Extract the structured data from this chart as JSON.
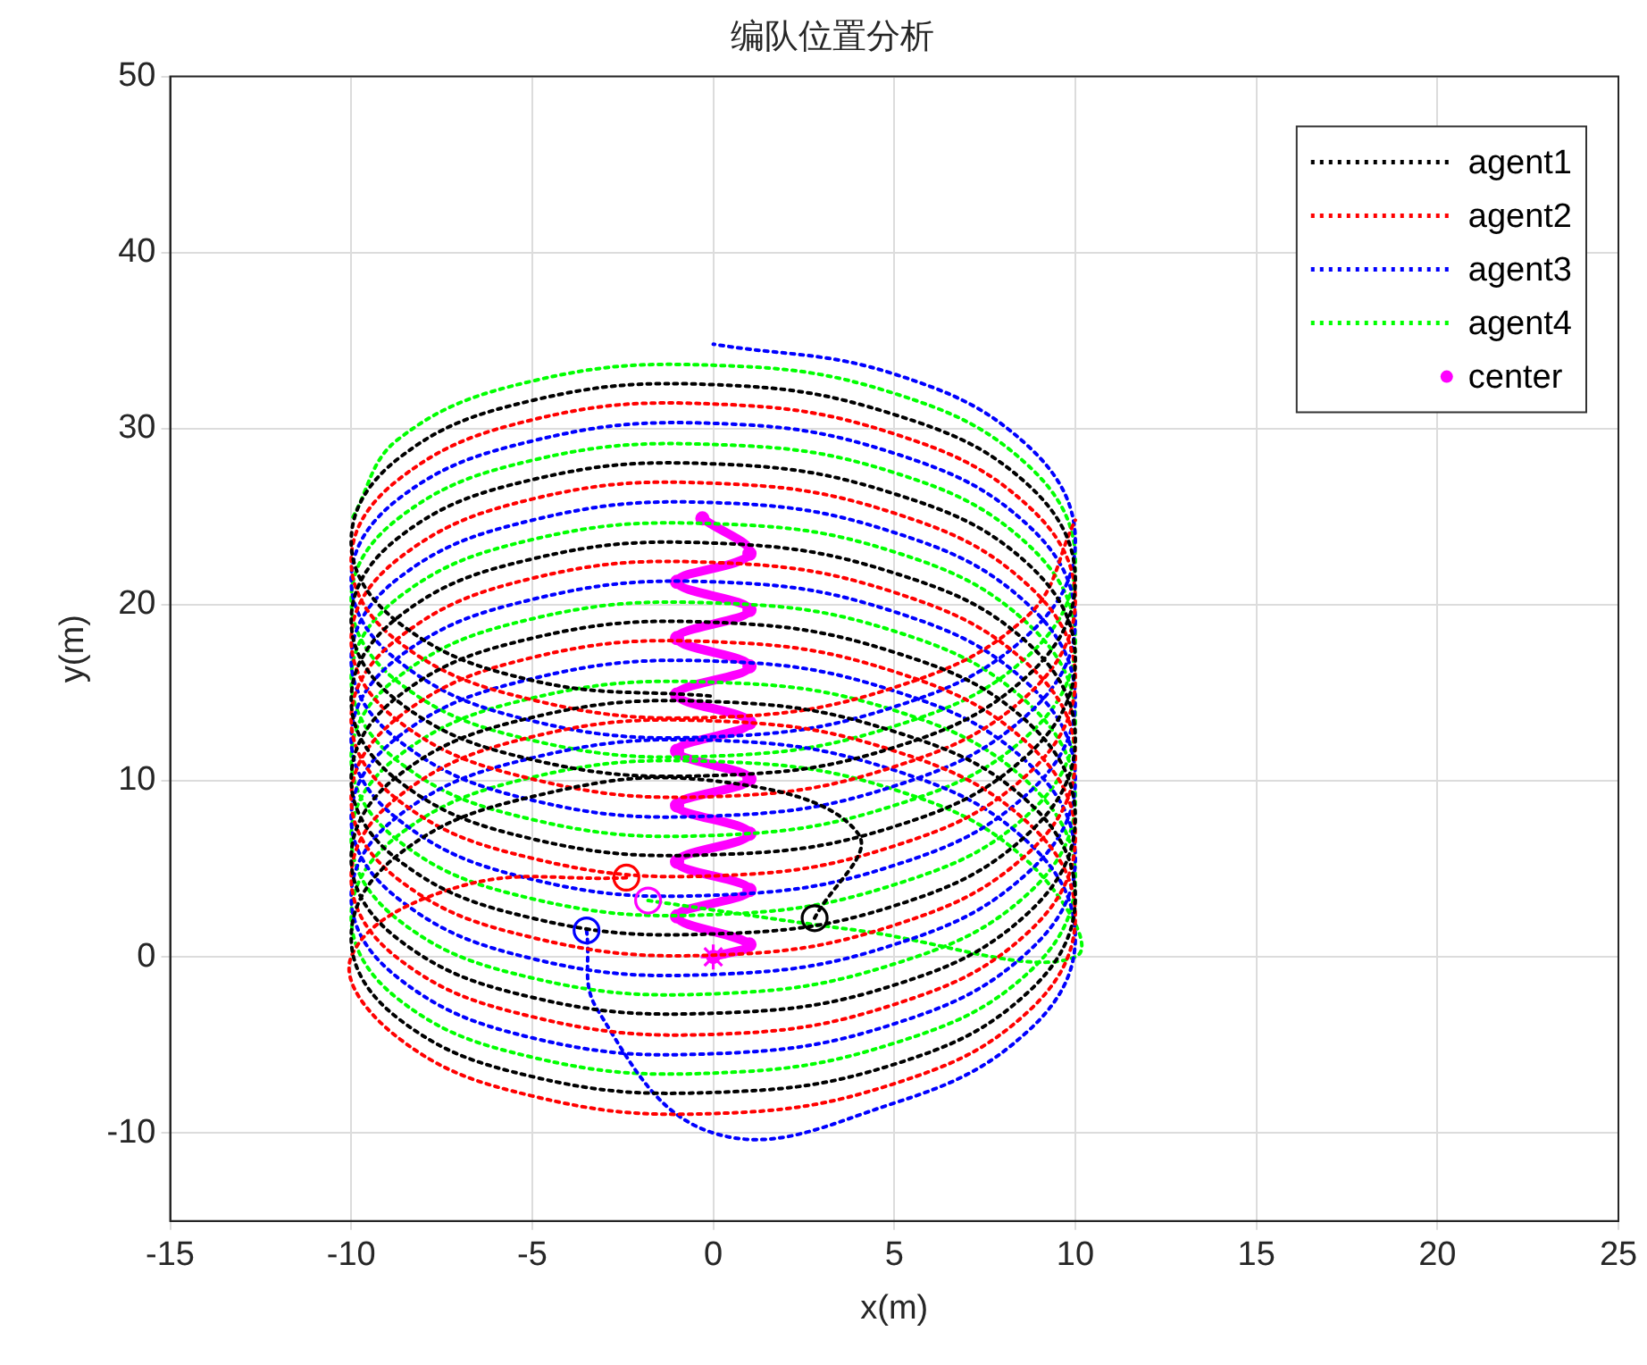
{
  "chart_data": {
    "type": "line",
    "title": "编队位置分析",
    "xlabel": "x(m)",
    "ylabel": "y(m)",
    "xlim": [
      -15,
      25
    ],
    "xticks": [
      -15,
      -10,
      -5,
      0,
      5,
      10,
      15,
      20,
      25
    ],
    "ylim": [
      -15,
      50
    ],
    "yticks": [
      -10,
      0,
      10,
      20,
      30,
      40,
      50
    ],
    "grid": true,
    "legend": "top right",
    "series": [
      {
        "name": "agent1",
        "color": "#000000",
        "line_style": "dotted",
        "marker": "none",
        "x": [
          2.8,
          4,
          0,
          -5,
          -8.7,
          -10,
          -8.7,
          -5,
          0,
          5,
          8.7,
          10,
          8.7,
          5,
          0,
          -5,
          -8.7,
          -10,
          -8.7,
          -5,
          0,
          5,
          8.7,
          10,
          8.7,
          5,
          0,
          -5,
          -8.7,
          -10,
          -8.7,
          -5,
          0,
          5,
          8.7,
          10,
          8.7,
          5,
          0,
          -5,
          -8.7,
          -10,
          -8.7,
          -5,
          0,
          5,
          8.7,
          10,
          8.7,
          5,
          0,
          -5,
          -8.7,
          -10,
          -8.7,
          -5,
          0,
          5,
          8.7,
          10,
          8.7,
          5,
          0,
          -5,
          -8.7,
          -10,
          -8.7,
          -5,
          0
        ],
        "values": [
          2.2,
          7,
          10,
          9.1,
          5.8,
          1.1,
          -3.5,
          -6.8,
          -7.7,
          -6.1,
          -2,
          3.4,
          8.8,
          12.8,
          14.5,
          13.6,
          10.3,
          5.6,
          1,
          -2.3,
          -3.2,
          -1.6,
          2.5,
          7.9,
          13.3,
          17.3,
          19,
          18.1,
          14.8,
          10.1,
          5.5,
          2.2,
          1.3,
          2.9,
          7,
          12.4,
          17.8,
          21.8,
          23.5,
          22.6,
          19.3,
          14.6,
          10,
          6.7,
          5.8,
          7.4,
          11.5,
          16.9,
          22.3,
          26.3,
          28,
          27.1,
          23.8,
          19.1,
          14.5,
          11.2,
          10.3,
          11.9,
          16,
          21.4,
          26.8,
          30.8,
          32.5,
          31.6,
          28.3,
          23.6,
          19,
          15.7,
          14.8
        ]
      },
      {
        "name": "agent2",
        "color": "#ff0000",
        "line_style": "dotted",
        "marker": "none",
        "x": [
          -2.4,
          -7,
          -10,
          -8.7,
          -5,
          0,
          5,
          8.7,
          10,
          8.7,
          5,
          0,
          -5,
          -8.7,
          -10,
          -8.7,
          -5,
          0,
          5,
          8.7,
          10,
          8.7,
          5,
          0,
          -5,
          -8.7,
          -10,
          -8.7,
          -5,
          0,
          5,
          8.7,
          10,
          8.7,
          5,
          0,
          -5,
          -8.7,
          -10,
          -8.7,
          -5,
          0,
          5,
          8.7,
          10,
          8.7,
          5,
          0,
          -5,
          -8.7,
          -10,
          -8.7,
          -5,
          0,
          5,
          8.7,
          10,
          8.7,
          5,
          0,
          -5,
          -8.7,
          -10,
          -8.7,
          -5,
          0,
          5,
          8.7,
          10
        ],
        "values": [
          4.5,
          4,
          0,
          -4.6,
          -7.9,
          -8.9,
          -7.2,
          -3.1,
          2.3,
          7.6,
          11.7,
          13.4,
          12.5,
          9.1,
          4.5,
          -0.1,
          -3.4,
          -4.4,
          -2.7,
          1.4,
          6.8,
          12.1,
          16.2,
          17.9,
          17,
          13.6,
          9,
          4.4,
          1.1,
          0.1,
          1.8,
          5.9,
          11.3,
          16.6,
          20.7,
          22.4,
          21.5,
          18.1,
          13.5,
          8.9,
          5.6,
          4.6,
          6.3,
          10.4,
          15.8,
          21.1,
          25.2,
          26.9,
          26,
          22.6,
          18,
          13.4,
          10.1,
          9.1,
          10.8,
          14.9,
          20.3,
          25.6,
          29.7,
          31.4,
          30.5,
          27.1,
          22.5,
          17.9,
          14.6,
          13.6,
          15.3,
          19.4,
          24.8
        ]
      },
      {
        "name": "agent3",
        "color": "#0000ff",
        "line_style": "dotted",
        "marker": "none",
        "x": [
          -3.5,
          -3.2,
          0,
          5,
          8.7,
          10,
          8.7,
          5,
          0,
          -5,
          -8.7,
          -10,
          -8.7,
          -5,
          0,
          5,
          8.7,
          10,
          8.7,
          5,
          0,
          -5,
          -8.7,
          -10,
          -8.7,
          -5,
          0,
          5,
          8.7,
          10,
          8.7,
          5,
          0,
          -5,
          -8.7,
          -10,
          -8.7,
          -5,
          0,
          5,
          8.7,
          10,
          8.7,
          5,
          0,
          -5,
          -8.7,
          -10,
          -8.7,
          -5,
          0,
          5,
          8.7,
          10,
          8.7,
          5,
          0,
          -5,
          -8.7,
          -10,
          -8.7,
          -5,
          0,
          5,
          8.7,
          10,
          8.7,
          5,
          0
        ],
        "values": [
          1.5,
          -3,
          -10,
          -8.3,
          -4.2,
          1.1,
          6.5,
          10.6,
          12.3,
          11.3,
          8,
          3.4,
          -1.2,
          -4.6,
          -5.5,
          -3.8,
          0.3,
          5.6,
          11,
          15.1,
          16.8,
          15.8,
          12.5,
          7.9,
          3.3,
          -0.1,
          -1,
          0.7,
          4.8,
          10.1,
          15.5,
          19.6,
          21.3,
          20.3,
          17,
          12.4,
          7.8,
          4.4,
          3.5,
          5.2,
          9.3,
          14.6,
          20,
          24.1,
          25.8,
          24.8,
          21.5,
          16.9,
          12.3,
          8.9,
          8,
          9.7,
          13.8,
          19.1,
          24.5,
          28.6,
          30.3,
          29.3,
          26,
          21.4,
          16.8,
          13.4,
          12.5,
          14.2,
          18.3,
          23.6,
          29,
          33.1,
          34.8
        ]
      },
      {
        "name": "agent4",
        "color": "#00ff00",
        "line_style": "dotted",
        "marker": "none",
        "x": [
          -1.8,
          4,
          10,
          8.7,
          5,
          0,
          -5,
          -8.7,
          -10,
          -8.7,
          -5,
          0,
          5,
          8.7,
          10,
          8.7,
          5,
          0,
          -5,
          -8.7,
          -10,
          -8.7,
          -5,
          0,
          5,
          8.7,
          10,
          8.7,
          5,
          0,
          -5,
          -8.7,
          -10,
          -8.7,
          -5,
          0,
          5,
          8.7,
          10,
          8.7,
          5,
          0,
          -5,
          -8.7,
          -10,
          -8.7,
          -5,
          0,
          5,
          8.7,
          10,
          8.7,
          5,
          0,
          -5,
          -8.7,
          -10,
          -8.7,
          -5,
          0,
          5,
          8.7,
          10,
          8.7,
          5,
          0,
          -5,
          -8.7,
          -10
        ],
        "values": [
          3.2,
          1.5,
          0,
          5.4,
          9.5,
          11.1,
          10.2,
          6.9,
          2.3,
          -2.4,
          -5.7,
          -6.6,
          -4.9,
          -0.9,
          4.5,
          9.9,
          14,
          15.6,
          14.7,
          11.4,
          6.8,
          2.1,
          -1.2,
          -2.1,
          -0.4,
          3.6,
          9,
          14.4,
          18.5,
          20.1,
          19.2,
          15.9,
          11.3,
          6.6,
          3.3,
          2.4,
          4.1,
          8.1,
          13.5,
          18.9,
          23,
          24.6,
          23.7,
          20.4,
          15.8,
          11.1,
          7.8,
          6.9,
          8.6,
          12.6,
          18,
          23.4,
          27.5,
          29.1,
          28.2,
          24.9,
          20.3,
          15.6,
          12.3,
          11.4,
          13.1,
          17.1,
          22.5,
          27.9,
          32,
          33.6,
          32.7,
          29.4,
          24.8
        ]
      },
      {
        "name": "center",
        "color": "#ff00ff",
        "line_style": "solid",
        "marker": "circle",
        "x": [
          0,
          1,
          -1,
          1,
          -1,
          1,
          -1,
          1,
          -1,
          1,
          -1,
          1,
          -1,
          1,
          -1,
          1,
          -0.3
        ],
        "values": [
          0,
          0.7,
          2.3,
          3.8,
          5.4,
          7,
          8.6,
          10.1,
          11.7,
          13.3,
          14.9,
          16.5,
          18.1,
          19.7,
          21.3,
          22.9,
          24.9
        ]
      },
      {
        "type": "scatter",
        "marker": "circle",
        "x": [
          2.8,
          -2.4,
          -3.5,
          -1.8
        ],
        "values": [
          2.2,
          4.5,
          1.5,
          3.2
        ],
        "colors": [
          "#000000",
          "#ff0000",
          "#0000ff",
          "#ff00ff"
        ]
      },
      {
        "type": "scatter",
        "marker": "cross",
        "color": "#ff00ff",
        "x": [
          0
        ],
        "values": [
          0
        ]
      }
    ]
  }
}
